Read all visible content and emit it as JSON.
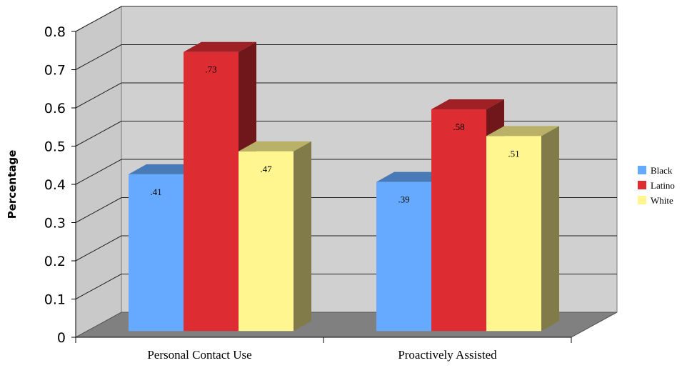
{
  "chart_data": {
    "type": "bar",
    "style": "3d-clustered-column",
    "title": "",
    "xlabel": "",
    "ylabel": "Percentage",
    "ylim": [
      0,
      0.8
    ],
    "yticks": [
      "0",
      "0.1",
      "0.2",
      "0.3",
      "0.4",
      "0.5",
      "0.6",
      "0.7",
      "0.8"
    ],
    "grid": true,
    "legend_position": "right",
    "categories": [
      "Personal Contact Use",
      "Proactively Assisted"
    ],
    "series": [
      {
        "name": "Black",
        "values": [
          0.41,
          0.39
        ],
        "labels": [
          ".41",
          ".39"
        ],
        "color": "#66aaff"
      },
      {
        "name": "Latino",
        "values": [
          0.73,
          0.58
        ],
        "labels": [
          ".73",
          ".58"
        ],
        "color": "#dd2d33"
      },
      {
        "name": "White",
        "values": [
          0.47,
          0.51
        ],
        "labels": [
          ".47",
          ".51"
        ],
        "color": "#fff68f"
      }
    ]
  }
}
